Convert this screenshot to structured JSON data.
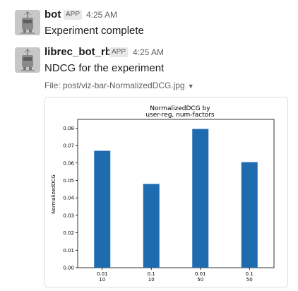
{
  "messages": [
    {
      "sender": "bot",
      "badge": "APP",
      "time": "4:25 AM",
      "text": "Experiment complete",
      "avatar_icon": "robot-icon"
    },
    {
      "sender": "librec_bot_rb",
      "badge": "APP",
      "time": "4:25 AM",
      "text": "NDCG for the experiment",
      "avatar_icon": "robot-icon"
    }
  ],
  "file": {
    "label": "File: post/viz-bar-NormalizedDCG.jpg",
    "caret_icon": "caret-down-icon"
  },
  "colors": {
    "bar": "#1f6bb0",
    "avatar_bg": "#c7c7c7"
  },
  "chart_data": {
    "type": "bar",
    "title_line1": "NormalizedDCG by",
    "title_line2": "user-reg, num-factors",
    "title": "NormalizedDCG by user-reg, num-factors",
    "xlabel": "",
    "ylabel": "NormalizedDCG",
    "categories": [
      [
        "0.01",
        "10"
      ],
      [
        "0.1",
        "10"
      ],
      [
        "0.01",
        "50"
      ],
      [
        "0.1",
        "50"
      ]
    ],
    "values": [
      0.067,
      0.048,
      0.0795,
      0.0605
    ],
    "ylim": [
      0,
      0.085
    ],
    "yticks": [
      "0.00",
      "0.01",
      "0.02",
      "0.03",
      "0.04",
      "0.05",
      "0.06",
      "0.07",
      "0.08"
    ],
    "ytick_values": [
      0,
      0.01,
      0.02,
      0.03,
      0.04,
      0.05,
      0.06,
      0.07,
      0.08
    ],
    "grid": false,
    "legend": "none"
  }
}
